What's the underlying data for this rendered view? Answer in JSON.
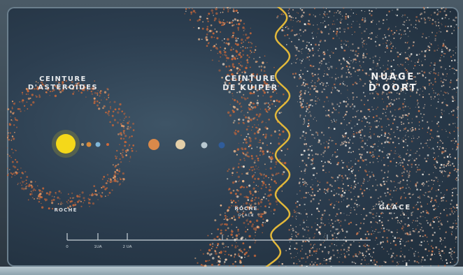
{
  "labels": {
    "asteroid_belt": [
      "CEINTURE",
      "D'ASTÉROÏDES"
    ],
    "kuiper_belt": [
      "CEINTURE",
      "DE KUIPER"
    ],
    "oort_cloud": [
      "NUAGE",
      "D'OORT"
    ],
    "asteroid_zone": "ROCHE",
    "kuiper_zone": [
      "ROCHE",
      "GLACE"
    ],
    "oort_zone": "GLACE"
  },
  "scale_bar": {
    "ticks": [
      "0",
      "1UA",
      "2 UA"
    ]
  },
  "colors": {
    "background": "#2c3e50",
    "sun": "#f5d81a",
    "asteroid_particles": "#c0653a",
    "oort_particles": "#d9b9a3",
    "wavy_line": "#e2b83a"
  },
  "planets": [
    {
      "name": "mercury",
      "color": "#b9a27a"
    },
    {
      "name": "venus",
      "color": "#d88a3a"
    },
    {
      "name": "earth",
      "color": "#7fb6d8"
    },
    {
      "name": "mars",
      "color": "#d06a3a"
    },
    {
      "name": "jupiter",
      "color": "#d9894a"
    },
    {
      "name": "saturn",
      "color": "#e4cfa8"
    },
    {
      "name": "uranus",
      "color": "#b8c8d0"
    },
    {
      "name": "neptune",
      "color": "#2f5c9a"
    }
  ]
}
